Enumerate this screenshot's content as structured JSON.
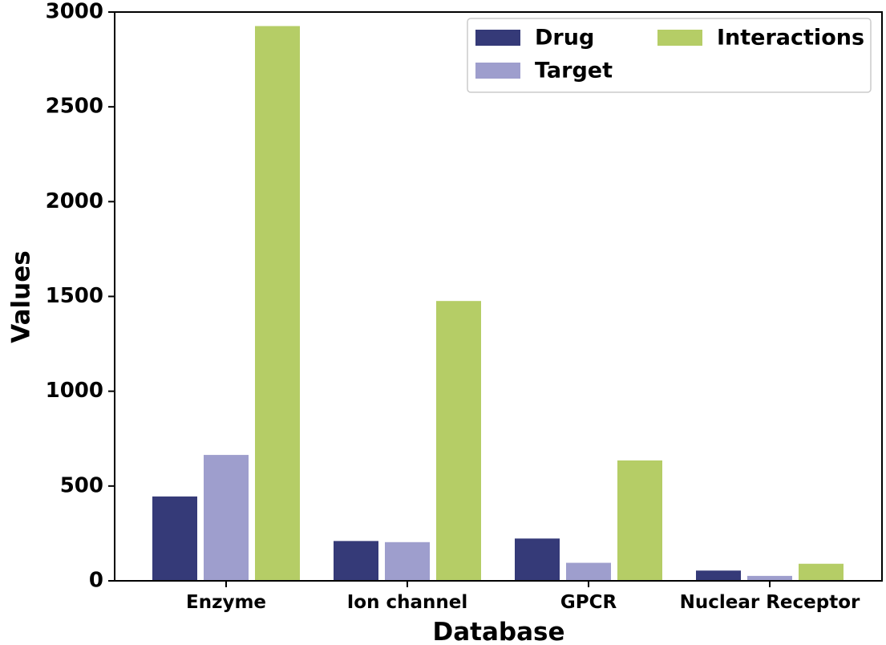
{
  "chart_data": {
    "type": "bar",
    "title": "",
    "xlabel": "Database",
    "ylabel": "Values",
    "ylim": [
      0,
      3000
    ],
    "yticks": [
      0,
      500,
      1000,
      1500,
      2000,
      2500,
      3000
    ],
    "categories": [
      "Enzyme",
      "Ion channel",
      "GPCR",
      "Nuclear Receptor"
    ],
    "series": [
      {
        "name": "Drug",
        "color": "#353a78",
        "values": [
          445,
          210,
          223,
          54
        ]
      },
      {
        "name": "Target",
        "color": "#9e9ecd",
        "values": [
          664,
          204,
          95,
          26
        ]
      },
      {
        "name": "Interactions",
        "color": "#b5cd66",
        "values": [
          2926,
          1476,
          635,
          90
        ]
      }
    ],
    "grid": false,
    "legend_position": "top-right"
  }
}
